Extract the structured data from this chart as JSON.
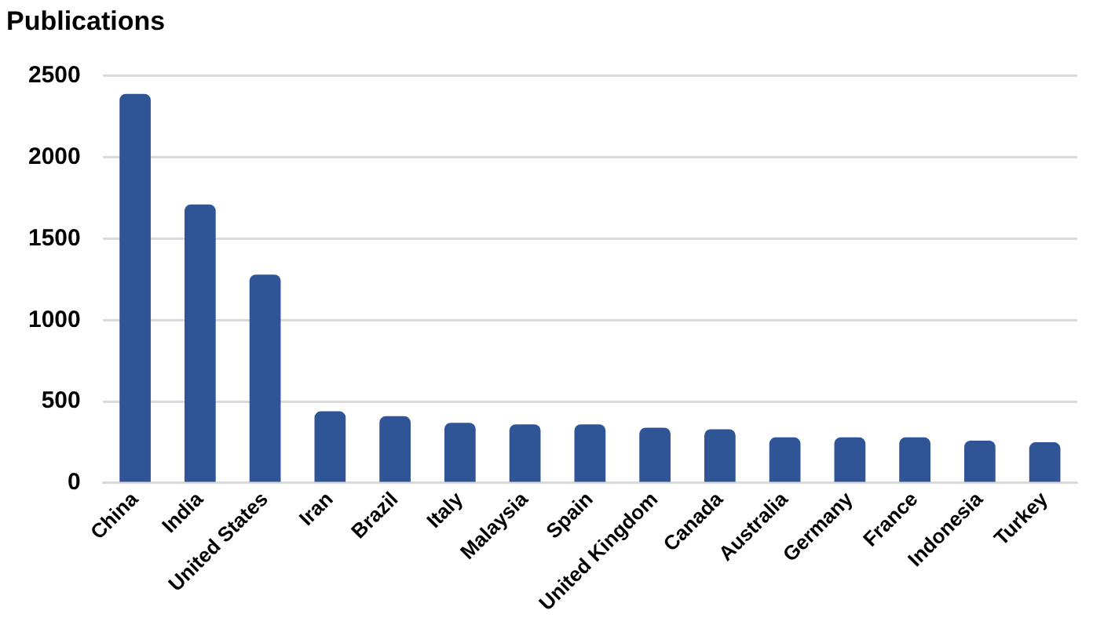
{
  "chart_data": {
    "type": "bar",
    "title": "Publications",
    "categories": [
      "China",
      "India",
      "United States",
      "Iran",
      "Brazil",
      "Italy",
      "Malaysia",
      "Spain",
      "United Kingdom",
      "Canada",
      "Australia",
      "Germany",
      "France",
      "Indonesia",
      "Turkey"
    ],
    "values": [
      2390,
      1710,
      1280,
      440,
      410,
      370,
      360,
      360,
      340,
      330,
      280,
      280,
      280,
      260,
      250
    ],
    "color": "#2f5597",
    "ylim": [
      0,
      2500
    ],
    "yticks": [
      0,
      500,
      1000,
      1500,
      2000,
      2500
    ],
    "grid": "y"
  }
}
